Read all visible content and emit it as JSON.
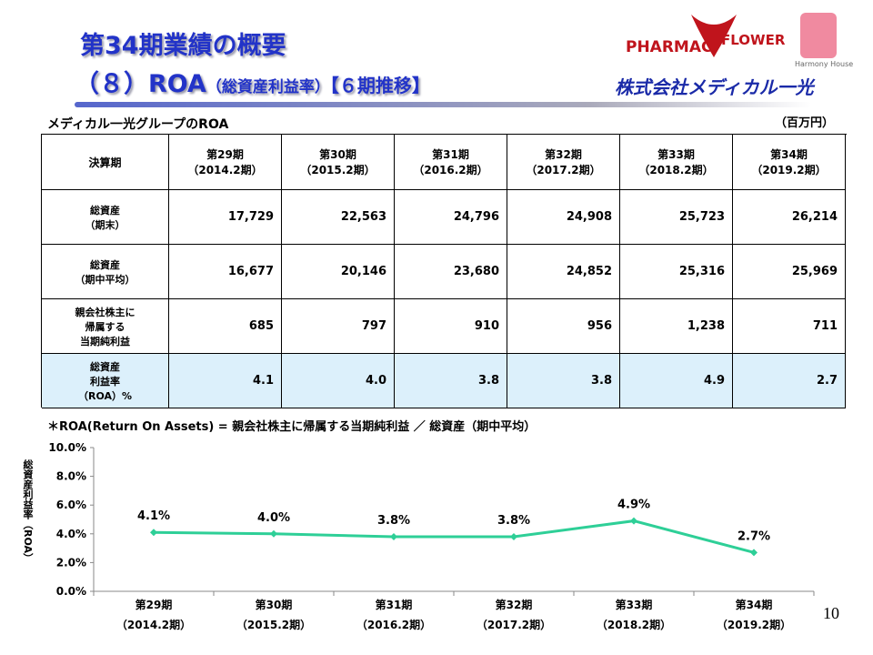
{
  "header": {
    "title_line1": "第34期業績の概要",
    "title_main": "（８）ROA",
    "title_sub": "（総資産利益率）",
    "title_period": "【６期推移】",
    "logo_left": "PHARMAC",
    "logo_right": "FLOWER",
    "logo_hh": "Harmony House",
    "company": "株式会社メディカル一光"
  },
  "table": {
    "caption": "メディカル一光グループのROA",
    "unit": "（百万円）",
    "header": [
      "決算期",
      "第29期\n（2014.2期）",
      "第30期\n（2015.2期）",
      "第31期\n（2016.2期）",
      "第32期\n（2017.2期）",
      "第33期\n（2018.2期）",
      "第34期\n（2019.2期）"
    ],
    "rows": [
      [
        "総資産\n（期末）",
        "17,729",
        "22,563",
        "24,796",
        "24,908",
        "25,723",
        "26,214"
      ],
      [
        "総資産\n（期中平均）",
        "16,677",
        "20,146",
        "23,680",
        "24,852",
        "25,316",
        "25,969"
      ],
      [
        "親会社株主に\n帰属する\n当期純利益",
        "685",
        "797",
        "910",
        "956",
        "1,238",
        "711"
      ],
      [
        "総資産\n利益率\n（ROA）%",
        "4.1",
        "4.0",
        "3.8",
        "3.8",
        "4.9",
        "2.7"
      ]
    ]
  },
  "footnote": "＊ROA(Return On Assets) = 親会社株主に帰属する当期純利益 ／ 総資産（期中平均）",
  "chart_data": {
    "type": "line",
    "y_label": "総資産利益率（ROA）",
    "categories": [
      "第29期\n（2014.2期）",
      "第30期\n（2015.2期）",
      "第31期\n（2016.2期）",
      "第32期\n（2017.2期）",
      "第33期\n（2018.2期）",
      "第34期\n（2019.2期）"
    ],
    "values": [
      4.1,
      4.0,
      3.8,
      3.8,
      4.9,
      2.7
    ],
    "value_labels": [
      "4.1%",
      "4.0%",
      "3.8%",
      "3.8%",
      "4.9%",
      "2.7%"
    ],
    "color": "#2ecf97",
    "ylim": [
      0,
      10
    ],
    "yticks": [
      {
        "value": 0,
        "label": "0.0%"
      },
      {
        "value": 2,
        "label": "2.0%"
      },
      {
        "value": 4,
        "label": "4.0%"
      },
      {
        "value": 6,
        "label": "6.0%"
      },
      {
        "value": 8,
        "label": "8.0%"
      },
      {
        "value": 10,
        "label": "10.0%"
      }
    ]
  },
  "page_number": "10"
}
